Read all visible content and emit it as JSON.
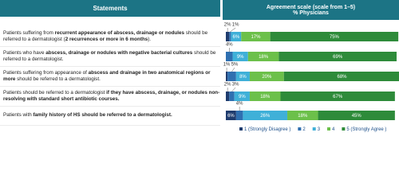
{
  "chart_data": {
    "type": "stacked_bar",
    "left_header": "Statements",
    "right_header": "Agreement scale (scale from 1–5)",
    "right_subheader": "% Physicians",
    "categories": [
      [
        {
          "text": "Patients suffering from "
        },
        {
          "text": "recurrent appearance of abscess, drainage or nodules",
          "bold": true
        },
        {
          "text": " should be referred to a dermatologist ("
        },
        {
          "text": "2 recurrences or more in 6 months",
          "bold": true
        },
        {
          "text": ")."
        }
      ],
      [
        {
          "text": "Patients who have "
        },
        {
          "text": "abscess, drainage or nodules with negative bacterial cultures",
          "bold": true
        },
        {
          "text": " should be referred to a dermatologist."
        }
      ],
      [
        {
          "text": "Patients suffering from appearance of "
        },
        {
          "text": "abscess and drainage in two anatomical regions or more",
          "bold": true
        },
        {
          "text": " should be referred to a dermatologist."
        }
      ],
      [
        {
          "text": "Patients should be referred to a dermatologist "
        },
        {
          "text": "if they have abscess, drainage, or nodules non-resolving with standard short antibiotic courses.",
          "bold": true
        }
      ],
      [
        {
          "text": "Patients with "
        },
        {
          "text": "family history of HS should be referred to a dermatologist.",
          "bold": true
        }
      ]
    ],
    "xlim": [
      0,
      100
    ],
    "series": [
      {
        "name": "1 (Strongly Disagree )",
        "color": "#1f3c6e",
        "values": [
          2,
          0,
          1,
          2,
          6
        ],
        "value_labels": [
          "2%",
          null,
          "1%",
          "2%",
          "6%"
        ]
      },
      {
        "name": "2",
        "color": "#2f6fb0",
        "values": [
          1,
          4,
          5,
          3,
          4
        ],
        "value_labels": [
          "1%",
          "4%",
          "5%",
          "3%",
          "4%"
        ]
      },
      {
        "name": "3",
        "color": "#3fb0d8",
        "values": [
          6,
          9,
          8,
          9,
          26
        ],
        "value_labels": [
          "6%",
          "9%",
          "8%",
          "9%",
          "26%"
        ]
      },
      {
        "name": "4",
        "color": "#6cc04a",
        "values": [
          17,
          18,
          20,
          18,
          18
        ],
        "value_labels": [
          "17%",
          "18%",
          "20%",
          "18%",
          "18%"
        ]
      },
      {
        "name": "5 (Strongly Agree )",
        "color": "#2e8b3a",
        "values": [
          75,
          69,
          68,
          67,
          45
        ],
        "value_labels": [
          "75%",
          "69%",
          "68%",
          "67%",
          "45%"
        ]
      }
    ]
  }
}
